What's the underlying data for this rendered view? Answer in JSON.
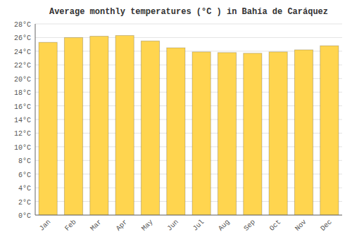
{
  "chart_data": {
    "type": "bar",
    "title": "Average monthly temperatures (°C ) in Bahía de Caráquez",
    "categories": [
      "Jan",
      "Feb",
      "Mar",
      "Apr",
      "May",
      "Jun",
      "Jul",
      "Aug",
      "Sep",
      "Oct",
      "Nov",
      "Dec"
    ],
    "values": [
      25.3,
      26.0,
      26.2,
      26.3,
      25.5,
      24.5,
      23.9,
      23.8,
      23.7,
      23.9,
      24.2,
      24.8
    ],
    "color": "#FFD54F",
    "ylim": [
      0,
      28
    ],
    "yticks": [
      {
        "value": 0,
        "label": "0°C"
      },
      {
        "value": 2,
        "label": "2°C"
      },
      {
        "value": 4,
        "label": "4°C"
      },
      {
        "value": 6,
        "label": "6°C"
      },
      {
        "value": 8,
        "label": "8°C"
      },
      {
        "value": 10,
        "label": "10°C"
      },
      {
        "value": 12,
        "label": "12°C"
      },
      {
        "value": 14,
        "label": "14°C"
      },
      {
        "value": 16,
        "label": "16°C"
      },
      {
        "value": 18,
        "label": "18°C"
      },
      {
        "value": 20,
        "label": "20°C"
      },
      {
        "value": 22,
        "label": "22°C"
      },
      {
        "value": 24,
        "label": "24°C"
      },
      {
        "value": 26,
        "label": "26°C"
      },
      {
        "value": 28,
        "label": "28°C"
      }
    ],
    "grid": true
  }
}
